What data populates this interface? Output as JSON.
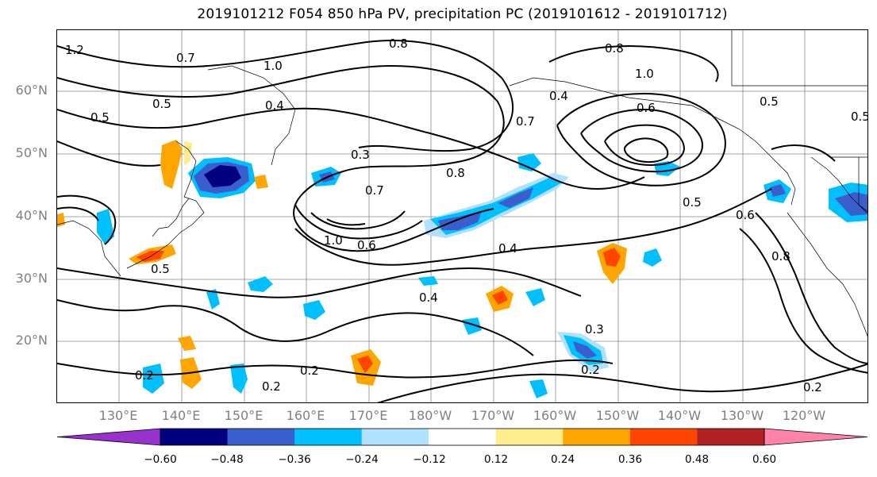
{
  "title": "2019101212 F054 850 hPa PV, precipitation PC (2019101612 - 2019101712)",
  "lat_labels": [
    "60°N",
    "50°N",
    "40°N",
    "30°N",
    "20°N"
  ],
  "lon_labels": [
    "130°E",
    "140°E",
    "150°E",
    "160°E",
    "170°E",
    "180°W",
    "170°W",
    "160°W",
    "150°W",
    "140°W",
    "130°W",
    "120°W"
  ],
  "colorbar": {
    "ticks": [
      "−0.60",
      "−0.48",
      "−0.36",
      "−0.24",
      "−0.12",
      "0.12",
      "0.24",
      "0.36",
      "0.48",
      "0.60"
    ],
    "colors": [
      "#9932cc",
      "#000080",
      "#3a5fcd",
      "#00bfff",
      "#b0e2ff",
      "#ffffff",
      "#ffec8b",
      "#ffa500",
      "#ff4500",
      "#b22222",
      "#ff83a8"
    ]
  },
  "contour_labels": [
    "0.8",
    "1.0",
    "0.8",
    "1.0",
    "0.4",
    "0.3",
    "0.8",
    "0.7",
    "1.0",
    "0.6",
    "0.4",
    "0.5",
    "0.6",
    "0.5",
    "0.5",
    "0.4",
    "0.2",
    "0.2",
    "0.2",
    "0.2",
    "0.3",
    "0.4",
    "0.6",
    "0.8",
    "0.5",
    "0.7",
    "0.2",
    "0.5",
    "0.5",
    "1.2",
    "0.7"
  ]
}
